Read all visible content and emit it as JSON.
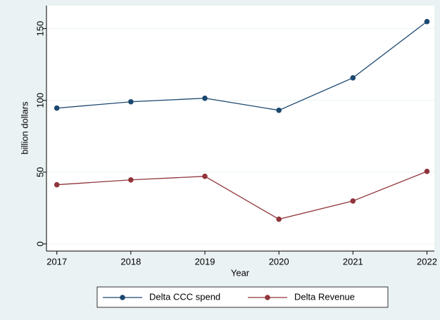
{
  "chart_data": {
    "type": "line",
    "x": [
      2017,
      2018,
      2019,
      2020,
      2021,
      2022
    ],
    "xlabel": "Year",
    "ylabel": "billion dollars",
    "xlim": [
      2016.86,
      2022.1
    ],
    "xticks": [
      2017,
      2018,
      2019,
      2020,
      2021,
      2022
    ],
    "ylim": [
      -5,
      166
    ],
    "yticks": [
      0,
      50,
      100,
      150
    ],
    "grid": true,
    "legend": "bottom",
    "series": [
      {
        "name": "Delta CCC spend",
        "color": "#1a476f",
        "values": [
          94.6,
          99.0,
          101.5,
          93.1,
          115.7,
          154.9
        ]
      },
      {
        "name": "Delta Revenue",
        "color": "#90353b",
        "values": [
          41.2,
          44.6,
          47.1,
          17.2,
          29.9,
          50.5
        ]
      }
    ]
  }
}
